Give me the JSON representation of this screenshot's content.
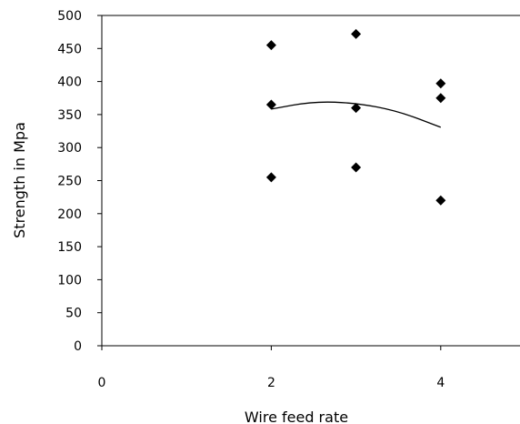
{
  "chart_data": {
    "type": "scatter",
    "title": "",
    "xlabel": "Wire feed rate",
    "ylabel": "Strength in Mpa",
    "xlim": [
      0,
      5
    ],
    "ylim": [
      0,
      500
    ],
    "x_ticks": [
      "0",
      "2",
      "4"
    ],
    "x_tick_values": [
      0,
      2,
      4
    ],
    "y_ticks": [
      "0",
      "50",
      "100",
      "150",
      "200",
      "250",
      "300",
      "350",
      "400",
      "450",
      "500"
    ],
    "y_tick_values": [
      0,
      50,
      100,
      150,
      200,
      250,
      300,
      350,
      400,
      450,
      500
    ],
    "grid": false,
    "legend": "none",
    "series": [
      {
        "marker": "diamond",
        "color": "#000000",
        "points": [
          {
            "x": 2,
            "y": 455
          },
          {
            "x": 2,
            "y": 365
          },
          {
            "x": 2,
            "y": 255
          },
          {
            "x": 3,
            "y": 472
          },
          {
            "x": 3,
            "y": 360
          },
          {
            "x": 3,
            "y": 270
          },
          {
            "x": 4,
            "y": 397
          },
          {
            "x": 4,
            "y": 375
          },
          {
            "x": 4,
            "y": 220
          }
        ]
      }
    ],
    "trendline": {
      "type": "polynomial",
      "color": "#000000",
      "x_range": [
        2,
        4
      ],
      "points": [
        {
          "x": 2,
          "y": 358.3
        },
        {
          "x": 2.5,
          "y": 369.9
        },
        {
          "x": 3,
          "y": 367.5
        },
        {
          "x": 3.5,
          "y": 355.2
        },
        {
          "x": 4,
          "y": 330.7
        }
      ]
    }
  }
}
